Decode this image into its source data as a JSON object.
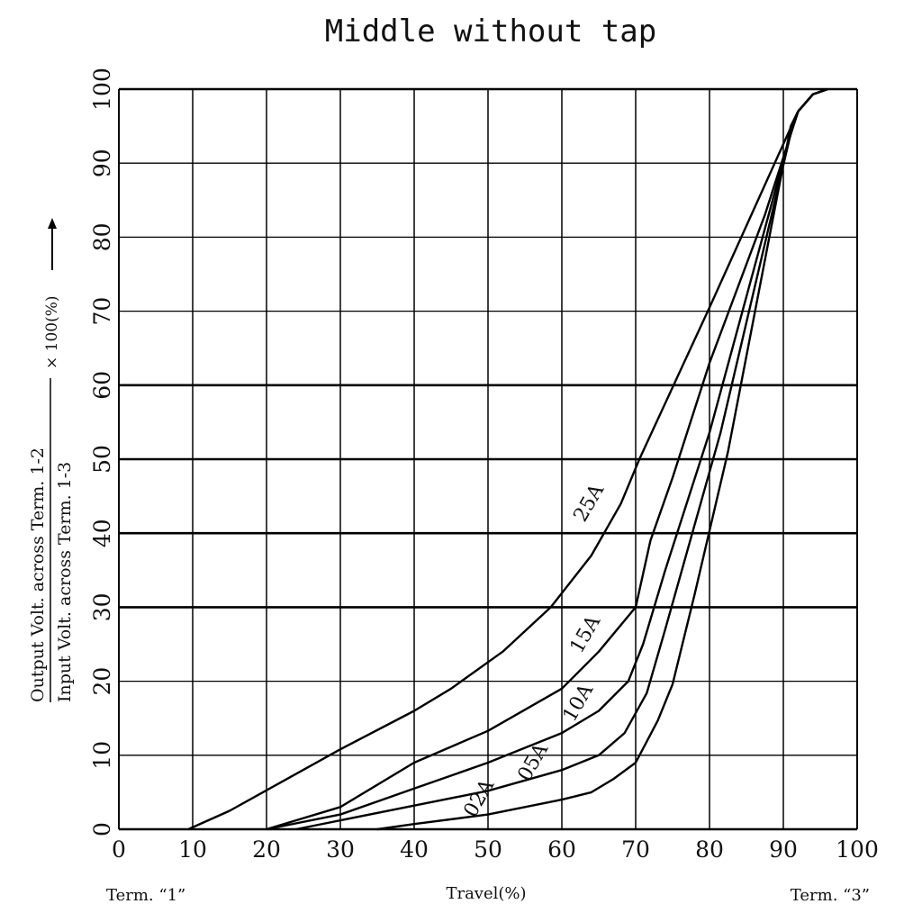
{
  "chart_data": {
    "type": "line",
    "title": "Middle without tap",
    "xlabel": "Travel(%)",
    "x_end_labels": {
      "left": "Term. “1”",
      "right": "Term. “3”"
    },
    "ylabel": {
      "numerator": "Output Volt. across  Term. 1-2",
      "denominator": "Input  Volt. across  Term. 1-3",
      "multiplier": "× 100(%)"
    },
    "xlim": [
      0,
      100
    ],
    "ylim": [
      0,
      100
    ],
    "xticks": [
      "0",
      "10",
      "20",
      "30",
      "40",
      "50",
      "60",
      "70",
      "80",
      "90",
      "100"
    ],
    "yticks": [
      "0",
      "10",
      "20",
      "30",
      "40",
      "50",
      "60",
      "70",
      "80",
      "90",
      "100"
    ],
    "grid": true,
    "line_color": "#000000",
    "series": [
      {
        "name": "25A",
        "points": [
          [
            9.4,
            0
          ],
          [
            15,
            2.5
          ],
          [
            30,
            10.8
          ],
          [
            40,
            16
          ],
          [
            45,
            19
          ],
          [
            52,
            24
          ],
          [
            58.5,
            30
          ],
          [
            64,
            37
          ],
          [
            68,
            44
          ],
          [
            70.5,
            50
          ],
          [
            80,
            70.5
          ],
          [
            92,
            97
          ],
          [
            94,
            99.3
          ],
          [
            96,
            100
          ]
        ]
      },
      {
        "name": "15A",
        "points": [
          [
            20,
            0
          ],
          [
            30,
            3
          ],
          [
            40,
            9
          ],
          [
            50,
            13.3
          ],
          [
            60,
            19
          ],
          [
            65,
            24
          ],
          [
            70,
            30
          ],
          [
            72,
            39
          ],
          [
            75,
            47.5
          ],
          [
            80,
            63
          ],
          [
            87.5,
            83
          ],
          [
            92,
            97
          ],
          [
            94,
            99.3
          ],
          [
            96,
            100
          ]
        ]
      },
      {
        "name": "10A",
        "points": [
          [
            20,
            0
          ],
          [
            30,
            2
          ],
          [
            40,
            5.5
          ],
          [
            50,
            9
          ],
          [
            60,
            13
          ],
          [
            65,
            16
          ],
          [
            69,
            20
          ],
          [
            71,
            25
          ],
          [
            74,
            35
          ],
          [
            80,
            53.6
          ],
          [
            91,
            94
          ],
          [
            92,
            97
          ],
          [
            94,
            99.3
          ],
          [
            96,
            100
          ]
        ]
      },
      {
        "name": "05A",
        "points": [
          [
            24,
            0
          ],
          [
            40,
            3.2
          ],
          [
            50,
            5.2
          ],
          [
            60,
            8
          ],
          [
            65,
            10
          ],
          [
            68.5,
            13
          ],
          [
            71.5,
            18.4
          ],
          [
            74,
            27
          ],
          [
            81.5,
            53.6
          ],
          [
            91,
            94
          ],
          [
            92,
            97
          ],
          [
            94,
            99.3
          ],
          [
            96,
            100
          ]
        ]
      },
      {
        "name": "02A",
        "points": [
          [
            35,
            0
          ],
          [
            40,
            0.7
          ],
          [
            50,
            2
          ],
          [
            60,
            4
          ],
          [
            64,
            5
          ],
          [
            67,
            6.8
          ],
          [
            70,
            9
          ],
          [
            73,
            14.7
          ],
          [
            75,
            19.6
          ],
          [
            78,
            31.8
          ],
          [
            82.5,
            51
          ],
          [
            91,
            95
          ],
          [
            92,
            97
          ],
          [
            94,
            99.3
          ],
          [
            96,
            100
          ]
        ]
      }
    ]
  }
}
